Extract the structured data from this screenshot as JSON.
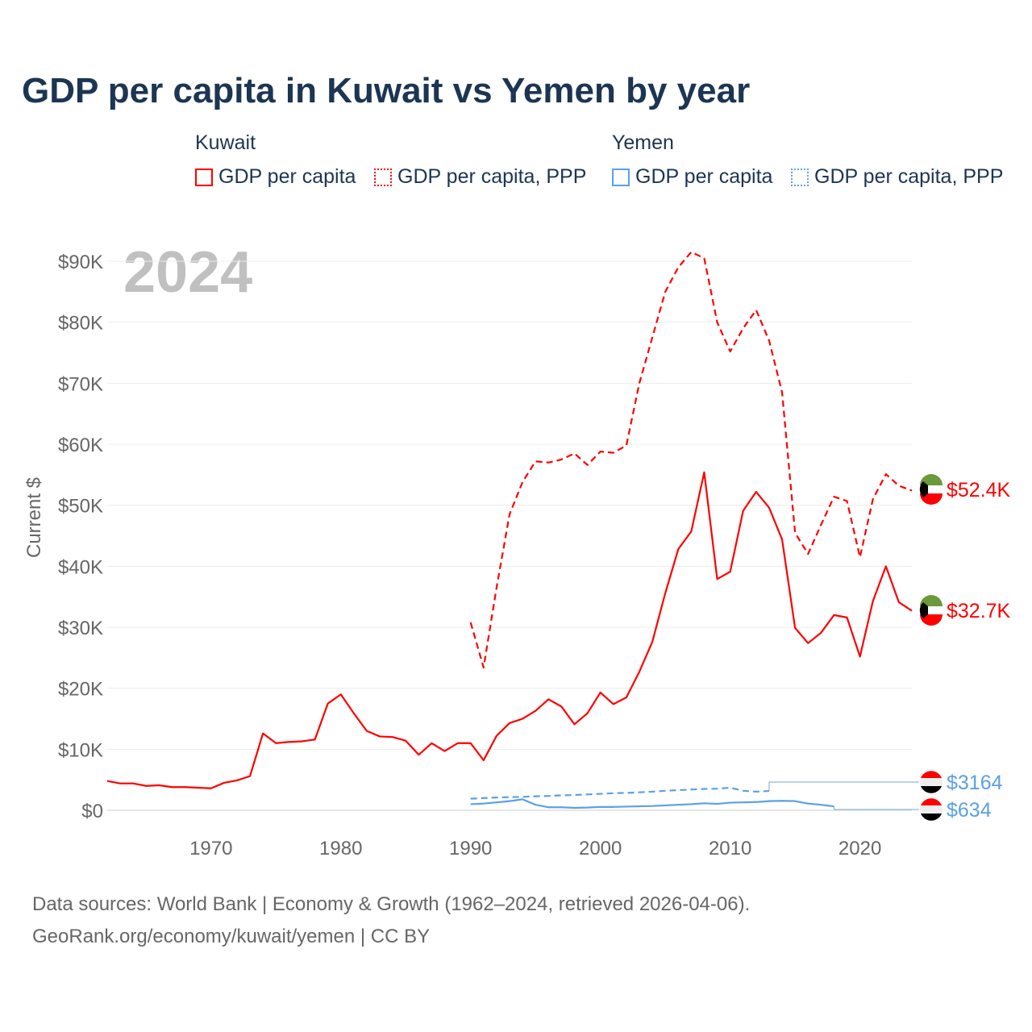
{
  "title": "GDP per capita in Kuwait vs Yemen by year",
  "legend": {
    "groups": [
      {
        "name": "Kuwait",
        "color": "#ff0000",
        "items": [
          "GDP per capita",
          "GDP per capita, PPP"
        ]
      },
      {
        "name": "Yemen",
        "color": "#5aa0e6",
        "items": [
          "GDP per capita",
          "GDP per capita, PPP"
        ]
      }
    ]
  },
  "year_label": "2024",
  "footer": {
    "line1": "Data sources: World Bank | Economy & Growth (1962–2024, retrieved 2026-04-06).",
    "line2": "GeoRank.org/economy/kuwait/yemen | CC BY"
  },
  "chart_data": {
    "type": "line",
    "title": "GDP per capita in Kuwait vs Yemen by year",
    "xlabel": "",
    "ylabel": "Current $",
    "xlim": [
      1962,
      2024
    ],
    "ylim": [
      0,
      90000
    ],
    "x_ticks": [
      "1970",
      "1980",
      "1990",
      "2000",
      "2010",
      "2020"
    ],
    "y_ticks": [
      "$0",
      "$10K",
      "$20K",
      "$30K",
      "$40K",
      "$50K",
      "$60K",
      "$70K",
      "$80K",
      "$90K"
    ],
    "grid": true,
    "series": [
      {
        "name": "Kuwait GDP per capita",
        "color": "#ff0000",
        "dash": false,
        "start": 1962,
        "end_label": "$32.7K",
        "values": [
          4.8,
          4.4,
          4.4,
          4.0,
          4.1,
          3.8,
          3.8,
          3.7,
          3.6,
          4.5,
          4.9,
          5.6,
          12.6,
          11.0,
          11.2,
          11.3,
          11.6,
          17.5,
          19.0,
          15.9,
          13.0,
          12.1,
          12.0,
          11.4,
          9.1,
          11.0,
          9.7,
          11.0,
          11.0,
          8.2,
          12.2,
          14.3,
          15.0,
          16.3,
          18.2,
          17.0,
          14.1,
          15.9,
          19.3,
          17.4,
          18.5,
          22.7,
          27.6,
          35.6,
          42.8,
          45.7,
          55.4,
          37.9,
          39.1,
          49.1,
          52.2,
          49.6,
          44.4,
          29.9,
          27.4,
          29.1,
          32.0,
          31.6,
          25.2,
          34.3,
          40.0,
          34.1,
          32.7
        ]
      },
      {
        "name": "Kuwait GDP per capita, PPP",
        "color": "#ff0000",
        "dash": true,
        "start": 1990,
        "end_label": "$52.4K",
        "values": [
          30.8,
          23.4,
          36.5,
          48.5,
          53.8,
          57.2,
          57.0,
          57.5,
          58.5,
          56.6,
          58.8,
          58.6,
          59.8,
          70.0,
          77.5,
          85.0,
          89.0,
          91.5,
          90.5,
          80.0,
          75.2,
          79.0,
          82.0,
          77.0,
          68.5,
          45.5,
          42.0,
          46.8,
          51.4,
          50.7,
          41.5,
          51.0,
          55.1,
          53.2,
          52.4
        ]
      },
      {
        "name": "Yemen GDP per capita",
        "color": "#5aa0e6",
        "dash": false,
        "start": 1990,
        "end_label": "$634",
        "values": [
          1.0,
          1.1,
          1.3,
          1.5,
          1.8,
          0.9,
          0.5,
          0.5,
          0.4,
          0.45,
          0.55,
          0.55,
          0.6,
          0.65,
          0.7,
          0.8,
          0.9,
          1.0,
          1.15,
          1.05,
          1.25,
          1.3,
          1.35,
          1.5,
          1.55,
          1.5,
          1.1,
          0.9,
          0.634
        ]
      },
      {
        "name": "Yemen GDP per capita, PPP",
        "color": "#5aa0e6",
        "dash": true,
        "start": 1990,
        "end_label": "$3164",
        "values": [
          1.9,
          2.0,
          2.1,
          2.15,
          2.2,
          2.3,
          2.35,
          2.45,
          2.5,
          2.6,
          2.7,
          2.8,
          2.85,
          2.95,
          3.05,
          3.2,
          3.3,
          3.4,
          3.5,
          3.55,
          3.7,
          3.2,
          3.05,
          3.164
        ]
      }
    ]
  }
}
